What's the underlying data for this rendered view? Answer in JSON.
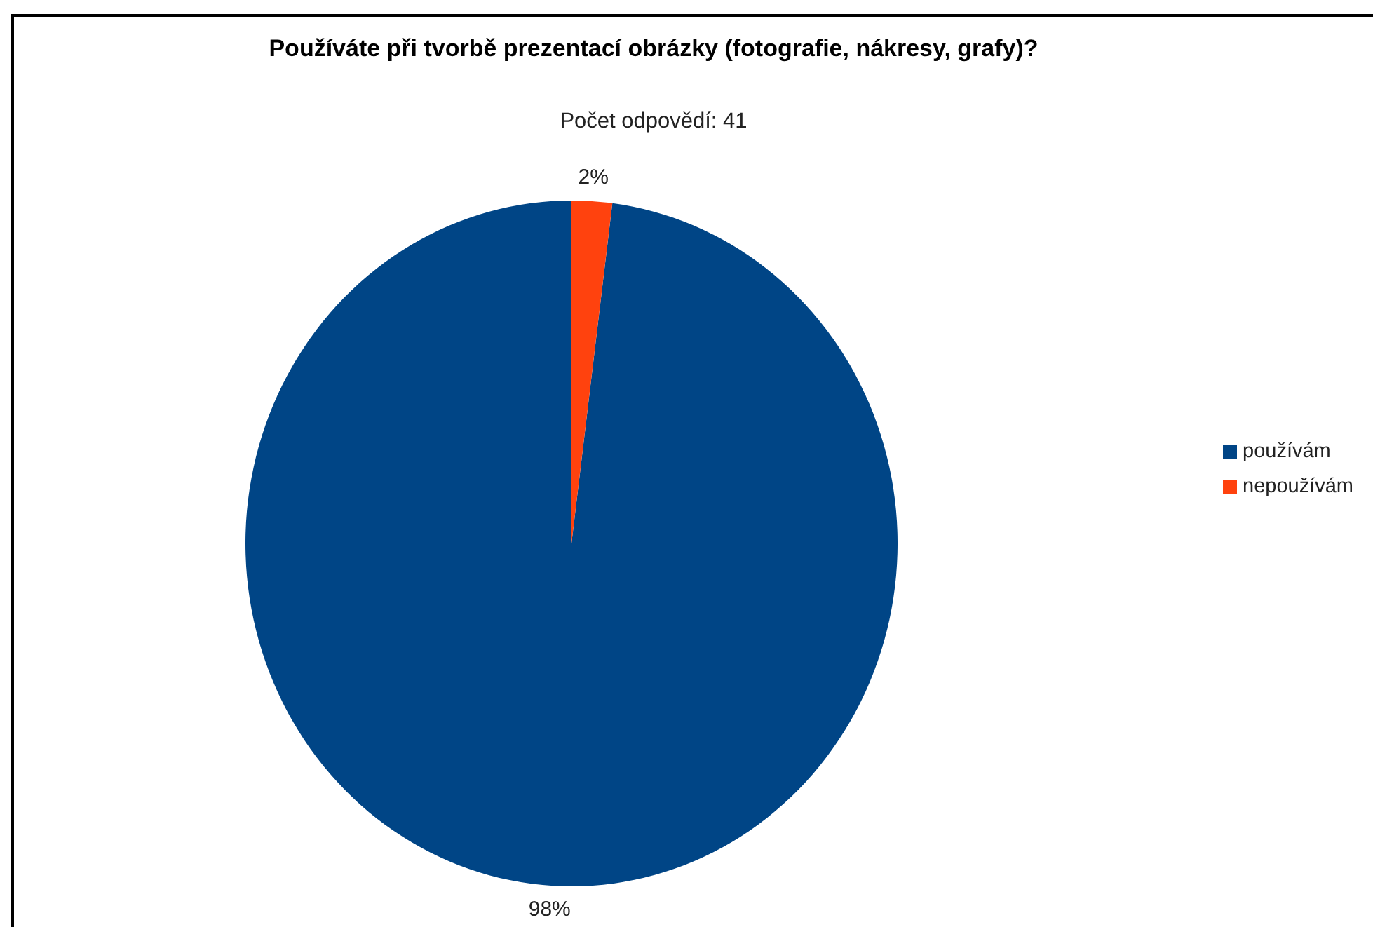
{
  "chart_data": {
    "type": "pie",
    "title": "Používáte při tvorbě prezentací obrázky (fotografie, nákresy, grafy)?",
    "subtitle": "Počet odpovědí: 41",
    "categories": [
      "používám",
      "nepoužívám"
    ],
    "values": [
      98,
      2
    ],
    "colors": [
      "#004586",
      "#ff420e"
    ],
    "value_labels": [
      "98%",
      "2%"
    ],
    "legend": "right"
  }
}
